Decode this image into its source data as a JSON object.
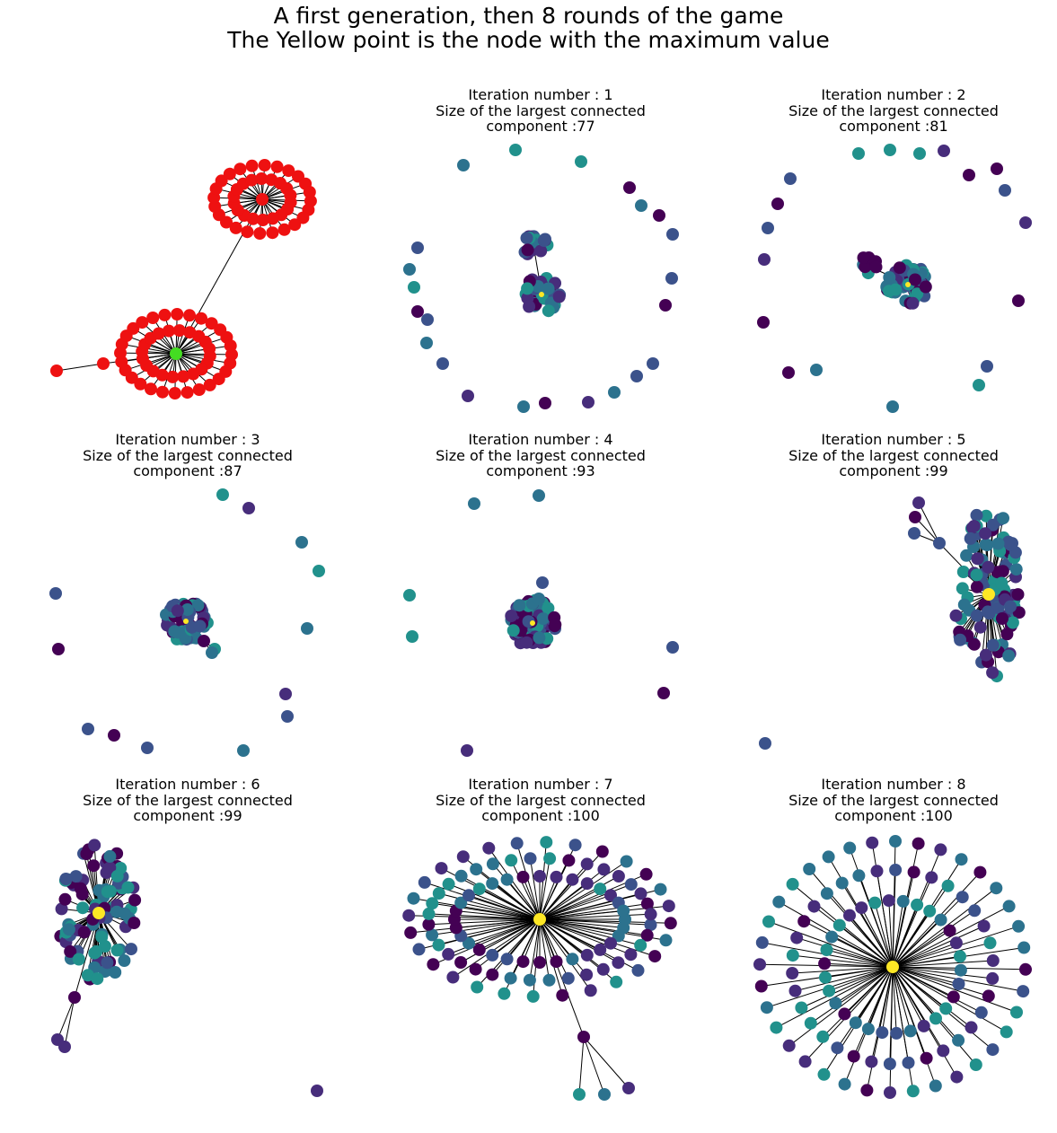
{
  "figure": {
    "title_line1": "A first generation, then 8 rounds of the game",
    "title_line2": "The Yellow point is the node with the maximum value"
  },
  "colors": {
    "generation_node": "#ee1111",
    "generation_center": "#44dd22",
    "maximum_node": "#fde725",
    "palette": [
      "#440154",
      "#472d7b",
      "#3b528b",
      "#2c728e",
      "#21918c"
    ],
    "edge": "#000000"
  },
  "panels": [
    {
      "id": "generation",
      "title": {
        "line1": "",
        "line2": "",
        "line3": ""
      }
    },
    {
      "id": "iteration-1",
      "title": {
        "line1": "Iteration number : 1",
        "line2": "Size of the largest connected",
        "line3": "component :77"
      }
    },
    {
      "id": "iteration-2",
      "title": {
        "line1": "Iteration number : 2",
        "line2": "Size of the largest connected",
        "line3": "component :81"
      }
    },
    {
      "id": "iteration-3",
      "title": {
        "line1": "Iteration number : 3",
        "line2": "Size of the largest connected",
        "line3": "component :87"
      }
    },
    {
      "id": "iteration-4",
      "title": {
        "line1": "Iteration number : 4",
        "line2": "Size of the largest connected",
        "line3": "component :93"
      }
    },
    {
      "id": "iteration-5",
      "title": {
        "line1": "Iteration number : 5",
        "line2": "Size of the largest connected",
        "line3": "component :99"
      }
    },
    {
      "id": "iteration-6",
      "title": {
        "line1": "Iteration number : 6",
        "line2": "Size of the largest connected",
        "line3": "component :99"
      }
    },
    {
      "id": "iteration-7",
      "title": {
        "line1": "Iteration number : 7",
        "line2": "Size of the largest connected",
        "line3": "component :100"
      }
    },
    {
      "id": "iteration-8",
      "title": {
        "line1": "Iteration number : 8",
        "line2": "Size of the largest connected",
        "line3": "component :100"
      }
    }
  ]
}
